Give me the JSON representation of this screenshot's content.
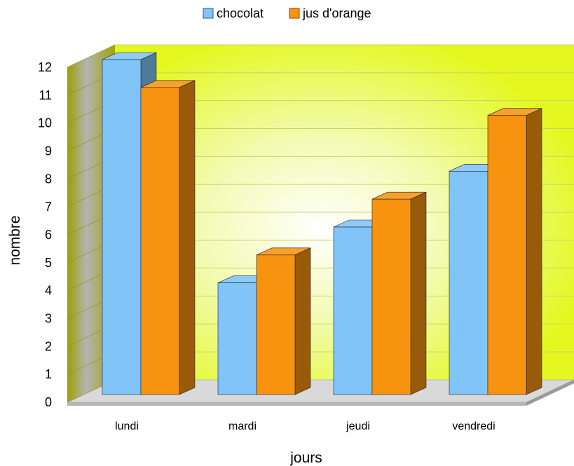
{
  "chart_data": {
    "type": "bar",
    "title": "",
    "xlabel": "jours",
    "ylabel": "nombre",
    "categories": [
      "lundi",
      "mardi",
      "jeudi",
      "vendredi"
    ],
    "series": [
      {
        "name": "chocolat",
        "values": [
          12,
          4,
          6,
          8
        ],
        "color": "#80c4f8"
      },
      {
        "name": "jus d'orange",
        "values": [
          11,
          5,
          7,
          10
        ],
        "color": "#f7930f"
      }
    ],
    "ylim": [
      0,
      12
    ],
    "yticks": [
      0,
      1,
      2,
      3,
      4,
      5,
      6,
      7,
      8,
      9,
      10,
      11,
      12
    ],
    "grid": true,
    "legend_position": "top-center",
    "style": "3d",
    "wall_color": "#e8fb2c",
    "floor_color": "#d8d8d8"
  }
}
